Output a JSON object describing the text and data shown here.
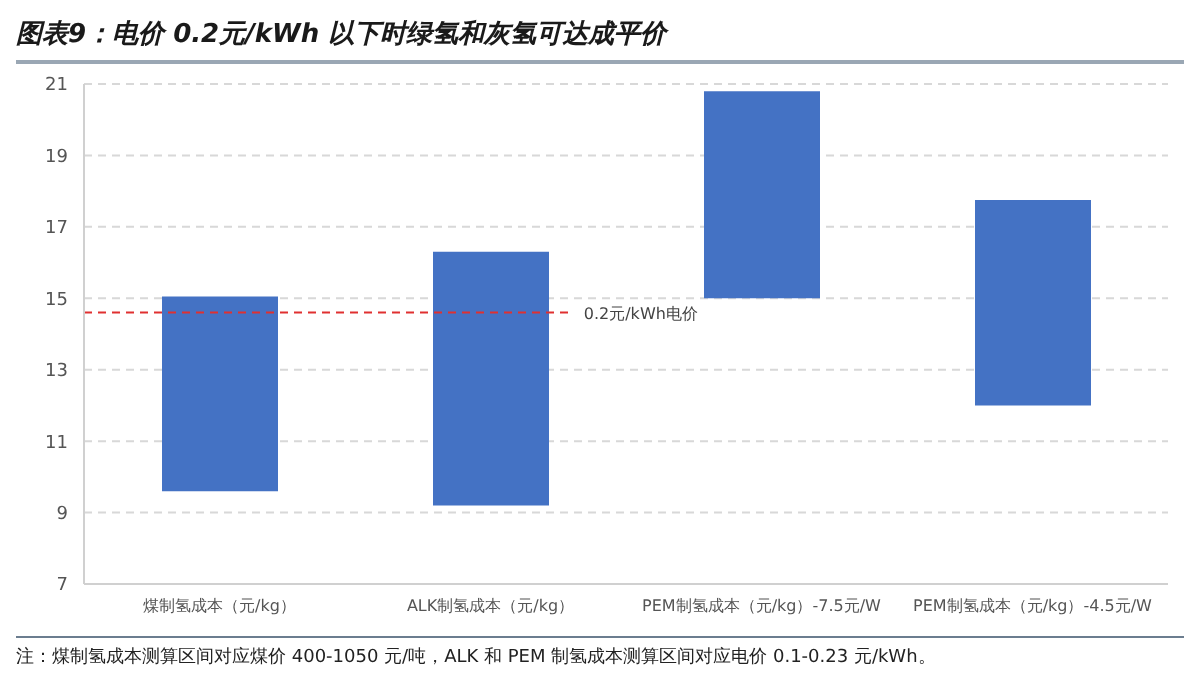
{
  "chart_data": {
    "type": "bar",
    "title": "图表9：电价 0.2元/kWh 以下时绿氢和灰氢可达成平价",
    "categories": [
      "煤制氢成本（元/kg）",
      "ALK制氢成本（元/kg）",
      "PEM制氢成本（元/kg）-7.5元/W",
      "PEM制氢成本（元/kg）-4.5元/W"
    ],
    "base": [
      9.6,
      9.2,
      15,
      12
    ],
    "values": [
      5.45,
      7.1,
      5.8,
      5.75
    ],
    "color": "#4472c4",
    "ylim": [
      7,
      21
    ],
    "yticks": [
      7,
      9,
      11,
      13,
      15,
      17,
      19,
      21
    ],
    "grid": "y",
    "ref_lines": [
      {
        "axis": "y",
        "value": 14.6,
        "label": "0.2元/kWh电价",
        "color": "#e03030",
        "line_style": "dashed"
      }
    ],
    "annotations": [
      "注：煤制氢成本测算区间对应煤价 400-1050 元/吨，ALK 和 PEM 制氢成本测算区间对应电价 0.1-0.23 元/kWh。"
    ]
  }
}
